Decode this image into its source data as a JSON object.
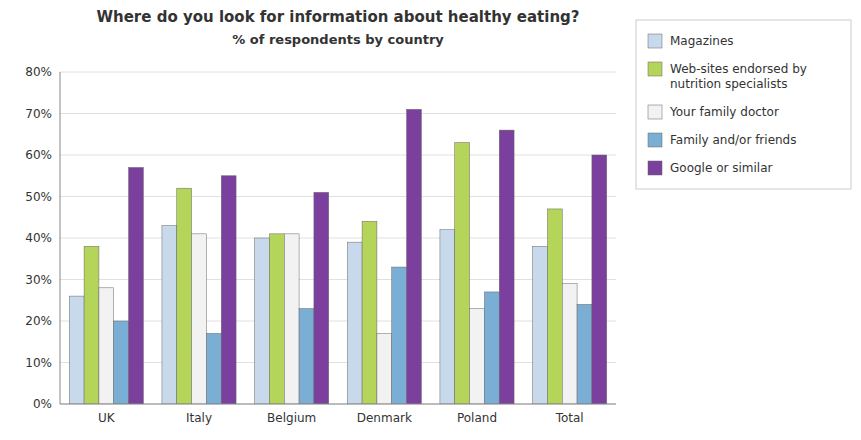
{
  "chart_data": {
    "type": "bar",
    "title": "Where do you look for information about healthy eating?",
    "subtitle": "%  of respondents by country",
    "categories": [
      "UK",
      "Italy",
      "Belgium",
      "Denmark",
      "Poland",
      "Total"
    ],
    "series": [
      {
        "name": "Magazines",
        "color": "#c8d9ec",
        "values": [
          26,
          43,
          40,
          39,
          42,
          38
        ]
      },
      {
        "name": "Web-sites endorsed by\nnutrition specialists",
        "color": "#b5d45a",
        "values": [
          38,
          52,
          41,
          44,
          63,
          47
        ]
      },
      {
        "name": "Your family doctor",
        "color": "#f2f2f2",
        "values": [
          28,
          41,
          41,
          17,
          23,
          29
        ]
      },
      {
        "name": "Family and/or friends",
        "color": "#7aaed4",
        "values": [
          20,
          17,
          23,
          33,
          27,
          24
        ]
      },
      {
        "name": "Google or similar",
        "color": "#7b3f9e",
        "values": [
          57,
          55,
          51,
          71,
          66,
          60
        ]
      }
    ],
    "ylim": [
      0,
      80
    ],
    "yticks": [
      {
        "value": 0,
        "label": "0%"
      },
      {
        "value": 10,
        "label": "10%"
      },
      {
        "value": 20,
        "label": "20%"
      },
      {
        "value": 30,
        "label": "30%"
      },
      {
        "value": 40,
        "label": "40%"
      },
      {
        "value": 50,
        "label": "50%"
      },
      {
        "value": 60,
        "label": "60%"
      },
      {
        "value": 70,
        "label": "70%"
      },
      {
        "value": 80,
        "label": "80%"
      }
    ],
    "grid": true,
    "legend": "right"
  }
}
